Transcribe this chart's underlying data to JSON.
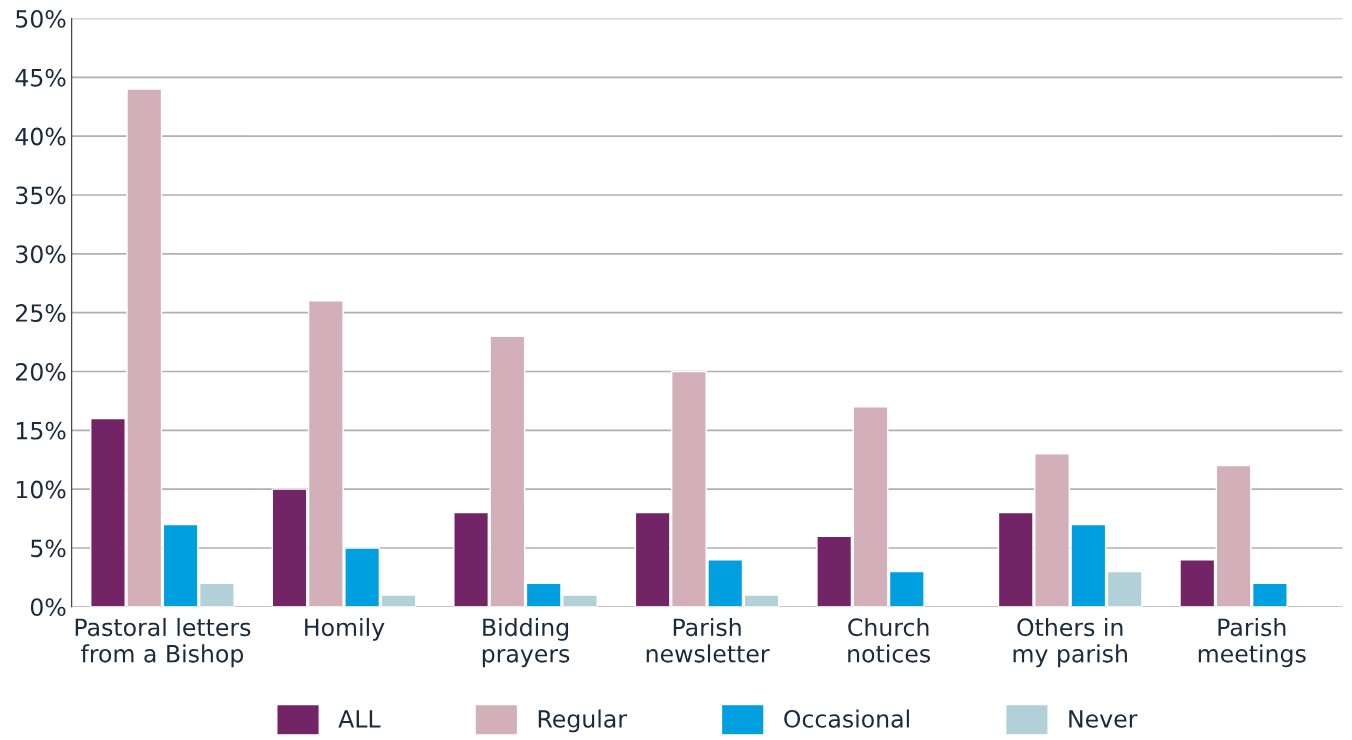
{
  "chart_data": {
    "type": "bar",
    "categories": [
      "Pastoral letters\nfrom a Bishop",
      "Homily",
      "Bidding\nprayers",
      "Parish\nnewsletter",
      "Church\nnotices",
      "Others in\nmy parish",
      "Parish\nmeetings"
    ],
    "series": [
      {
        "name": "ALL",
        "color": "#722466",
        "values": [
          16,
          10,
          8,
          8,
          6,
          8,
          4
        ]
      },
      {
        "name": "Regular",
        "color": "#d3afb9",
        "values": [
          44,
          26,
          23,
          20,
          17,
          13,
          12
        ]
      },
      {
        "name": "Occasional",
        "color": "#009fe0",
        "values": [
          7,
          5,
          2,
          4,
          3,
          7,
          2
        ]
      },
      {
        "name": "Never",
        "color": "#b2d0d8",
        "values": [
          2,
          1,
          1,
          1,
          null,
          3,
          null
        ]
      }
    ],
    "ylim": [
      0,
      50
    ],
    "yticks": [
      {
        "value": 0,
        "label": "0%"
      },
      {
        "value": 5,
        "label": "5%"
      },
      {
        "value": 10,
        "label": "10%"
      },
      {
        "value": 15,
        "label": "15%"
      },
      {
        "value": 20,
        "label": "20%"
      },
      {
        "value": 25,
        "label": "25%"
      },
      {
        "value": 30,
        "label": "30%"
      },
      {
        "value": 35,
        "label": "35%"
      },
      {
        "value": 40,
        "label": "40%"
      },
      {
        "value": 45,
        "label": "45%"
      },
      {
        "value": 50,
        "label": "50%"
      }
    ],
    "grid": "y",
    "legend": "bottom"
  }
}
